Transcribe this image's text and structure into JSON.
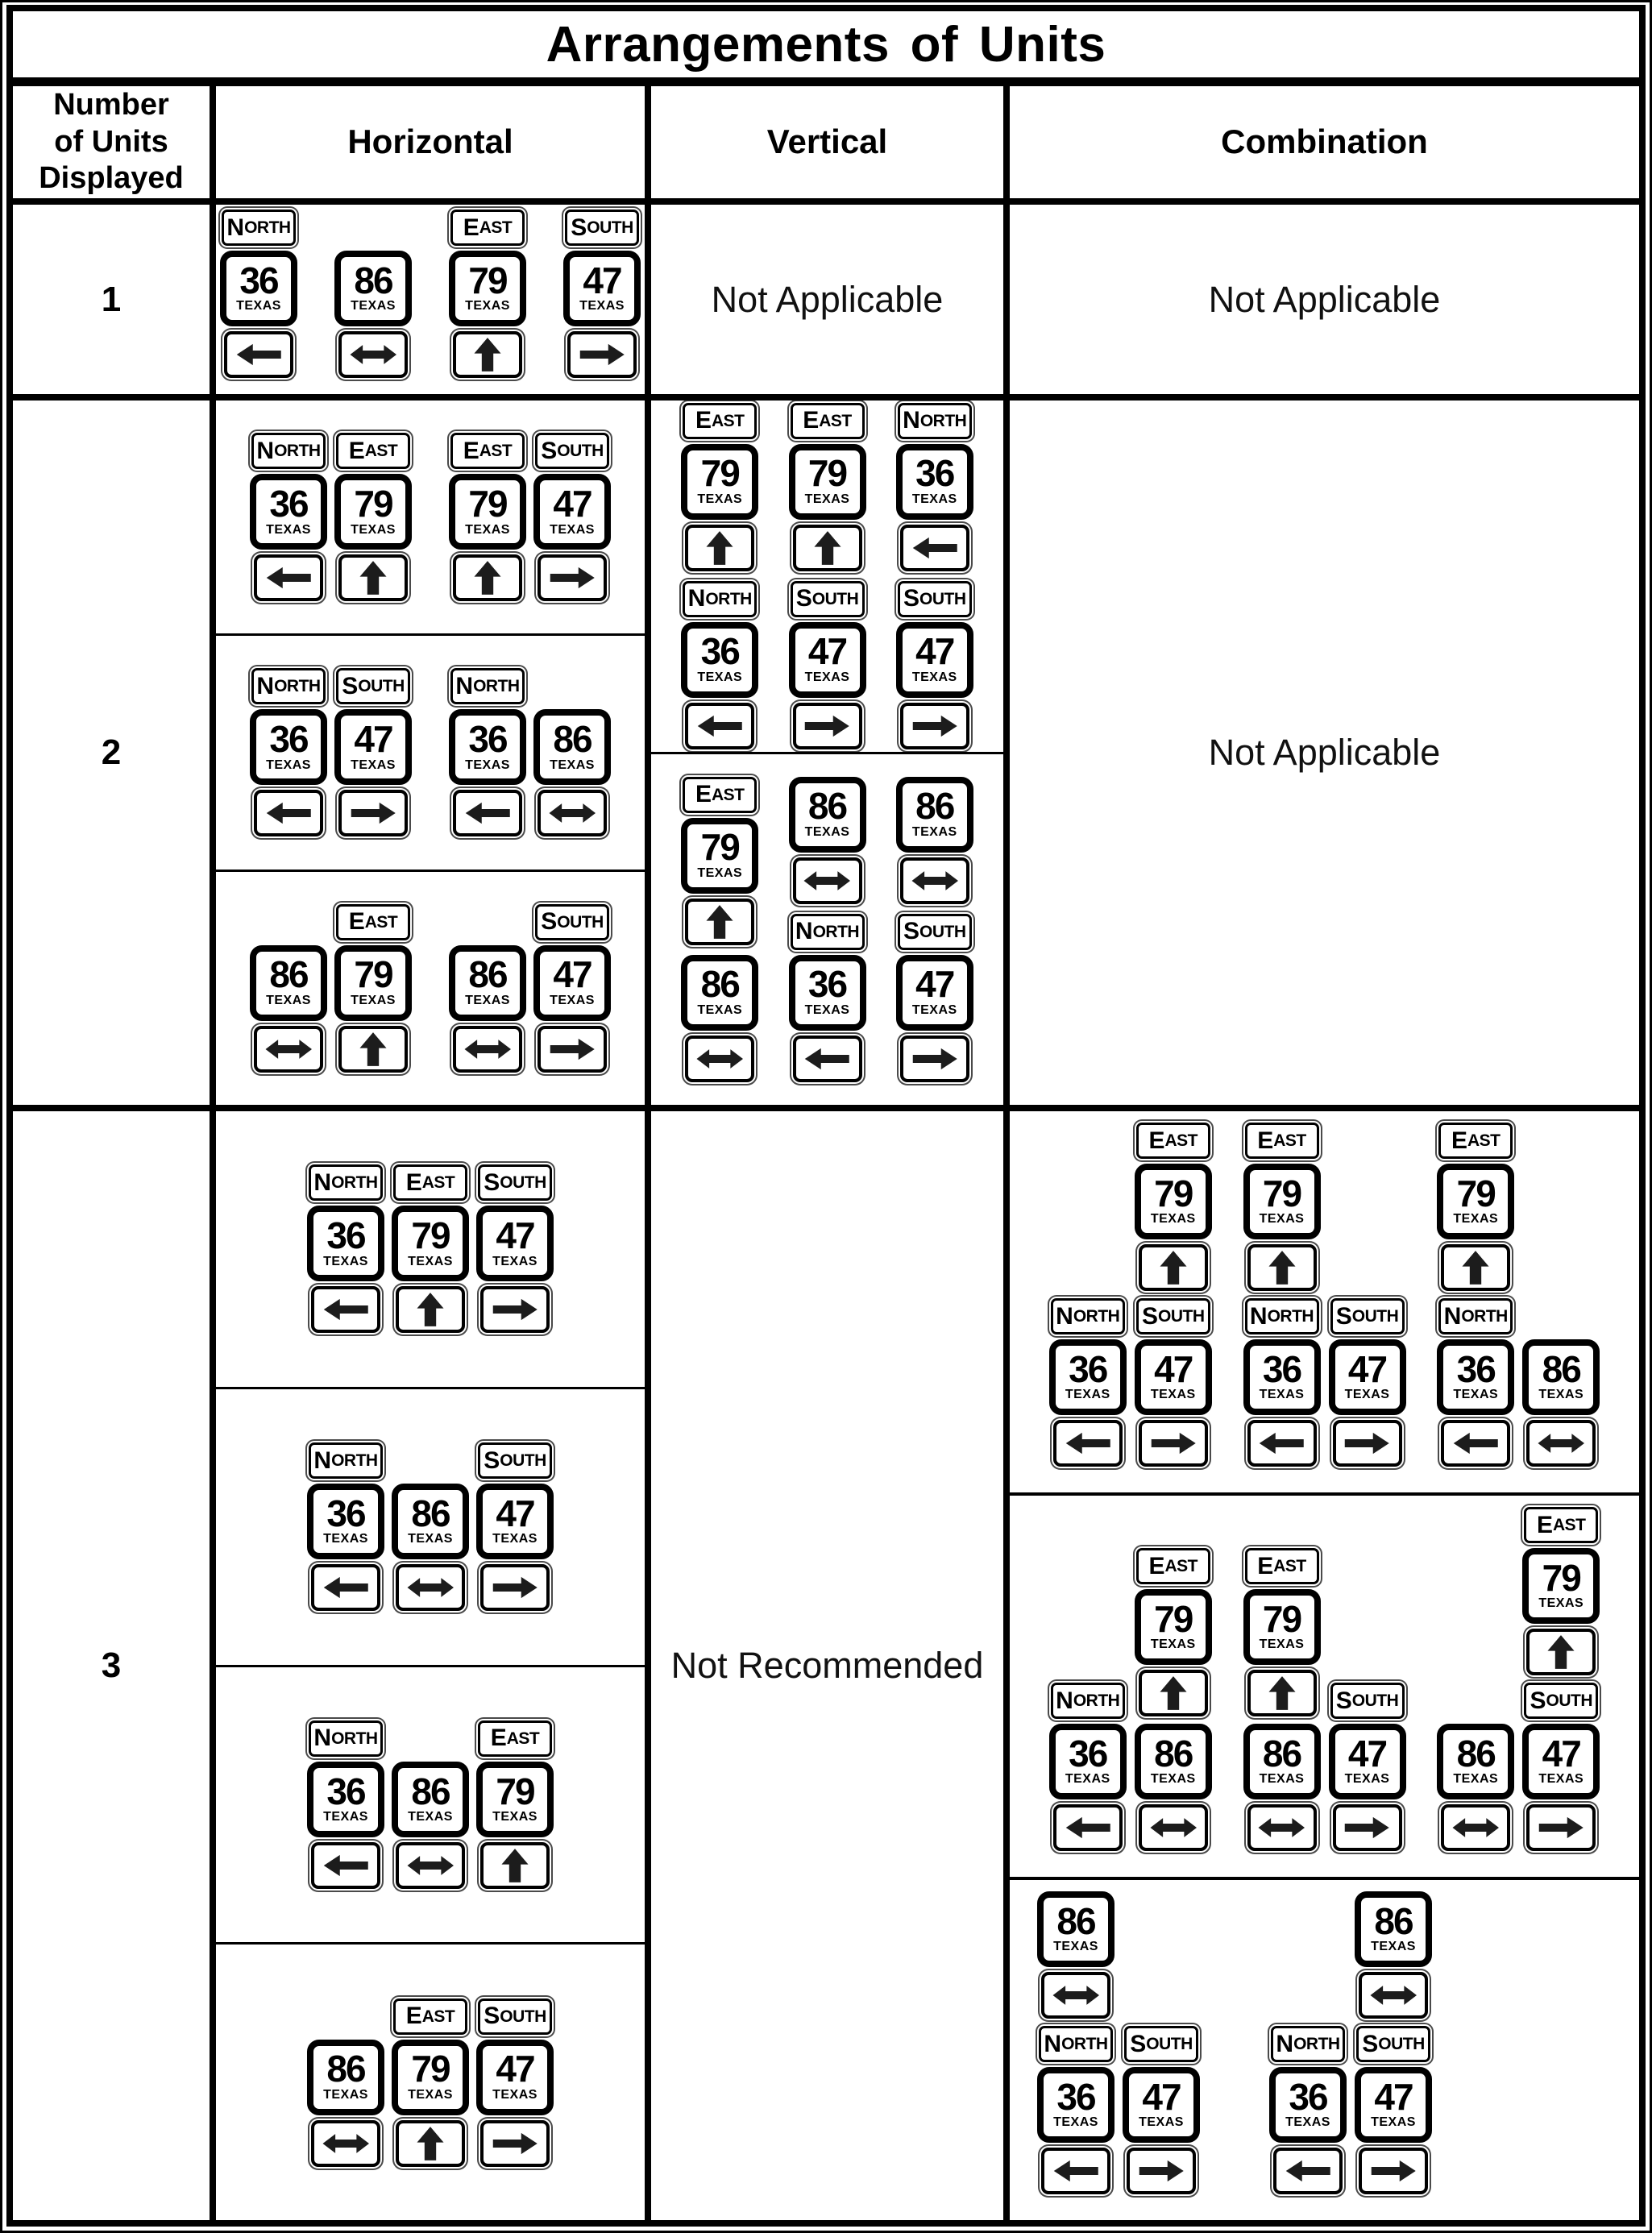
{
  "title": "Arrangements of Units",
  "header": {
    "col_units": "Number\nof Units\nDisplayed",
    "col_horizontal": "Horizontal",
    "col_vertical": "Vertical",
    "col_combination": "Combination"
  },
  "sign_labels": {
    "texas": "TEXAS"
  },
  "colors": {
    "ink": "#000000",
    "paper": "#ffffff",
    "arrow_fill": "#1c1c1c",
    "plate_ring": "#4a4a4a"
  },
  "rows": [
    {
      "number": "1",
      "cells": {
        "horizontal": {
          "kind": "hgroups",
          "subrows": [
            {
              "groups": [
                {
                  "units": [
                    {
                      "plate": "NORTH",
                      "route": "36",
                      "arrow": "left"
                    }
                  ]
                },
                {
                  "units": [
                    {
                      "route": "86",
                      "arrow": "double"
                    }
                  ]
                },
                {
                  "units": [
                    {
                      "plate": "EAST",
                      "route": "79",
                      "arrow": "up"
                    }
                  ]
                },
                {
                  "units": [
                    {
                      "plate": "SOUTH",
                      "route": "47",
                      "arrow": "right"
                    }
                  ]
                }
              ]
            }
          ]
        },
        "vertical": {
          "kind": "text",
          "text": "Not Applicable"
        },
        "combination": {
          "kind": "text",
          "text": "Not Applicable"
        }
      }
    },
    {
      "number": "2",
      "cells": {
        "horizontal": {
          "kind": "hgroups",
          "subrows": [
            {
              "groups": [
                {
                  "units": [
                    {
                      "plate": "NORTH",
                      "route": "36",
                      "arrow": "left"
                    },
                    {
                      "plate": "EAST",
                      "route": "79",
                      "arrow": "up"
                    }
                  ]
                },
                {
                  "units": [
                    {
                      "plate": "EAST",
                      "route": "79",
                      "arrow": "up"
                    },
                    {
                      "plate": "SOUTH",
                      "route": "47",
                      "arrow": "right"
                    }
                  ]
                }
              ]
            },
            {
              "groups": [
                {
                  "units": [
                    {
                      "plate": "NORTH",
                      "route": "36",
                      "arrow": "left"
                    },
                    {
                      "plate": "SOUTH",
                      "route": "47",
                      "arrow": "right"
                    }
                  ]
                },
                {
                  "units": [
                    {
                      "plate": "NORTH",
                      "route": "36",
                      "arrow": "left"
                    },
                    {
                      "route": "86",
                      "arrow": "double"
                    }
                  ]
                }
              ]
            },
            {
              "groups": [
                {
                  "units": [
                    {
                      "route": "86",
                      "arrow": "double"
                    },
                    {
                      "plate": "EAST",
                      "route": "79",
                      "arrow": "up"
                    }
                  ]
                },
                {
                  "units": [
                    {
                      "route": "86",
                      "arrow": "double"
                    },
                    {
                      "plate": "SOUTH",
                      "route": "47",
                      "arrow": "right"
                    }
                  ]
                }
              ]
            }
          ]
        },
        "vertical": {
          "kind": "vstacks",
          "sections": [
            {
              "stacks": [
                {
                  "units": [
                    {
                      "plate": "EAST",
                      "route": "79",
                      "arrow": "up"
                    },
                    {
                      "plate": "NORTH",
                      "route": "36",
                      "arrow": "left"
                    }
                  ]
                },
                {
                  "units": [
                    {
                      "plate": "EAST",
                      "route": "79",
                      "arrow": "up"
                    },
                    {
                      "plate": "SOUTH",
                      "route": "47",
                      "arrow": "right"
                    }
                  ]
                },
                {
                  "units": [
                    {
                      "plate": "NORTH",
                      "route": "36",
                      "arrow": "left"
                    },
                    {
                      "plate": "SOUTH",
                      "route": "47",
                      "arrow": "right"
                    }
                  ]
                }
              ]
            },
            {
              "stacks": [
                {
                  "units": [
                    {
                      "plate": "EAST",
                      "route": "79",
                      "arrow": "up"
                    },
                    {
                      "route": "86",
                      "arrow": "double"
                    }
                  ]
                },
                {
                  "units": [
                    {
                      "route": "86",
                      "arrow": "double"
                    },
                    {
                      "plate": "NORTH",
                      "route": "36",
                      "arrow": "left"
                    }
                  ]
                },
                {
                  "units": [
                    {
                      "route": "86",
                      "arrow": "double"
                    },
                    {
                      "plate": "SOUTH",
                      "route": "47",
                      "arrow": "right"
                    }
                  ]
                }
              ]
            }
          ]
        },
        "combination": {
          "kind": "text",
          "text": "Not Applicable"
        }
      }
    },
    {
      "number": "3",
      "cells": {
        "horizontal": {
          "kind": "hgroups",
          "subrows": [
            {
              "groups": [
                {
                  "units": [
                    {
                      "plate": "NORTH",
                      "route": "36",
                      "arrow": "left"
                    },
                    {
                      "plate": "EAST",
                      "route": "79",
                      "arrow": "up"
                    },
                    {
                      "plate": "SOUTH",
                      "route": "47",
                      "arrow": "right"
                    }
                  ]
                }
              ]
            },
            {
              "groups": [
                {
                  "units": [
                    {
                      "plate": "NORTH",
                      "route": "36",
                      "arrow": "left"
                    },
                    {
                      "route": "86",
                      "arrow": "double"
                    },
                    {
                      "plate": "SOUTH",
                      "route": "47",
                      "arrow": "right"
                    }
                  ]
                }
              ]
            },
            {
              "groups": [
                {
                  "units": [
                    {
                      "plate": "NORTH",
                      "route": "36",
                      "arrow": "left"
                    },
                    {
                      "route": "86",
                      "arrow": "double"
                    },
                    {
                      "plate": "EAST",
                      "route": "79",
                      "arrow": "up"
                    }
                  ]
                }
              ]
            },
            {
              "groups": [
                {
                  "units": [
                    {
                      "route": "86",
                      "arrow": "double"
                    },
                    {
                      "plate": "EAST",
                      "route": "79",
                      "arrow": "up"
                    },
                    {
                      "plate": "SOUTH",
                      "route": "47",
                      "arrow": "right"
                    }
                  ]
                }
              ]
            }
          ]
        },
        "vertical": {
          "kind": "text",
          "text": "Not Recommended"
        },
        "combination": {
          "kind": "combos",
          "sections": [
            {
              "combos": [
                {
                  "top": {
                    "plate": "EAST",
                    "route": "79",
                    "arrow": "up"
                  },
                  "top_side": "right",
                  "bottom": [
                    {
                      "plate": "NORTH",
                      "route": "36",
                      "arrow": "left"
                    },
                    {
                      "plate": "SOUTH",
                      "route": "47",
                      "arrow": "right"
                    }
                  ]
                },
                {
                  "top": {
                    "plate": "EAST",
                    "route": "79",
                    "arrow": "up"
                  },
                  "top_side": "left",
                  "bottom": [
                    {
                      "plate": "NORTH",
                      "route": "36",
                      "arrow": "left"
                    },
                    {
                      "plate": "SOUTH",
                      "route": "47",
                      "arrow": "right"
                    }
                  ]
                },
                {
                  "top": {
                    "plate": "EAST",
                    "route": "79",
                    "arrow": "up"
                  },
                  "top_side": "left",
                  "bottom": [
                    {
                      "plate": "NORTH",
                      "route": "36",
                      "arrow": "left"
                    },
                    {
                      "route": "86",
                      "arrow": "double"
                    }
                  ]
                }
              ]
            },
            {
              "combos": [
                {
                  "top": {
                    "plate": "EAST",
                    "route": "79",
                    "arrow": "up"
                  },
                  "top_side": "right",
                  "bottom": [
                    {
                      "plate": "NORTH",
                      "route": "36",
                      "arrow": "left"
                    },
                    {
                      "route": "86",
                      "arrow": "double"
                    }
                  ]
                },
                {
                  "top": {
                    "plate": "EAST",
                    "route": "79",
                    "arrow": "up"
                  },
                  "top_side": "left",
                  "bottom": [
                    {
                      "route": "86",
                      "arrow": "double"
                    },
                    {
                      "plate": "SOUTH",
                      "route": "47",
                      "arrow": "right"
                    }
                  ]
                },
                {
                  "top": {
                    "plate": "EAST",
                    "route": "79",
                    "arrow": "up"
                  },
                  "top_side": "right",
                  "bottom": [
                    {
                      "route": "86",
                      "arrow": "double"
                    },
                    {
                      "plate": "SOUTH",
                      "route": "47",
                      "arrow": "right"
                    }
                  ]
                }
              ]
            },
            {
              "combos": [
                {
                  "top": {
                    "route": "86",
                    "arrow": "double"
                  },
                  "top_side": "left",
                  "bottom": [
                    {
                      "plate": "NORTH",
                      "route": "36",
                      "arrow": "left"
                    },
                    {
                      "plate": "SOUTH",
                      "route": "47",
                      "arrow": "right"
                    }
                  ]
                },
                {
                  "top": {
                    "route": "86",
                    "arrow": "double"
                  },
                  "top_side": "right",
                  "bottom": [
                    {
                      "plate": "NORTH",
                      "route": "36",
                      "arrow": "left"
                    },
                    {
                      "plate": "SOUTH",
                      "route": "47",
                      "arrow": "right"
                    }
                  ]
                }
              ]
            }
          ]
        }
      }
    }
  ]
}
